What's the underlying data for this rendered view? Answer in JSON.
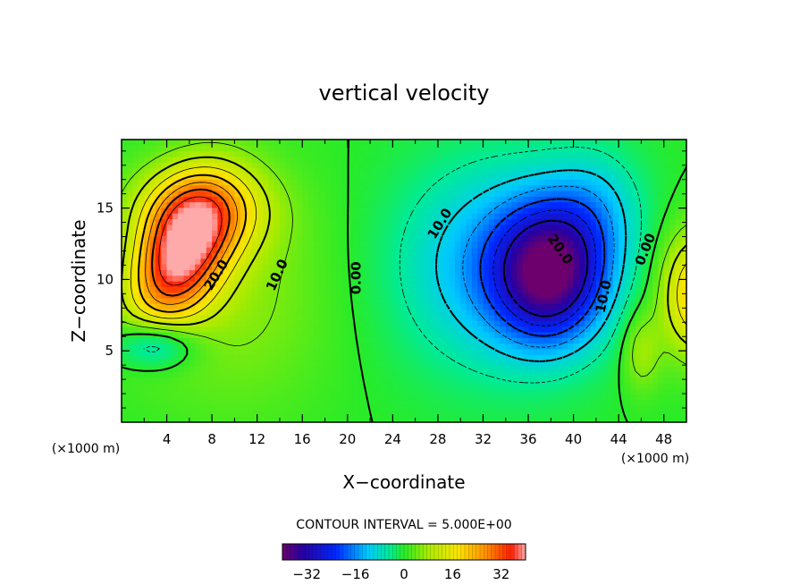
{
  "chart_data": {
    "type": "heatmap",
    "title": "vertical velocity",
    "xlabel": "X−coordinate",
    "ylabel": "Z−coordinate",
    "x_unit_left": "(×1000 m)",
    "x_unit_right": "(×1000 m)",
    "xlim": [
      0,
      50
    ],
    "ylim": [
      0,
      19.8
    ],
    "x_ticks": [
      4,
      8,
      12,
      16,
      20,
      24,
      28,
      32,
      36,
      40,
      44,
      48
    ],
    "y_ticks": [
      5,
      10,
      15
    ],
    "contour_interval_text": "CONTOUR INTERVAL = 5.000E+00",
    "contour_interval": 5,
    "colorbar": {
      "min": -40,
      "max": 40,
      "ticks": [
        -32,
        -16,
        0,
        16,
        32
      ]
    },
    "contour_labels": [
      {
        "text": "20.0",
        "x": 8.4,
        "y": 10.3,
        "angle": -58
      },
      {
        "text": "10.0",
        "x": 13.8,
        "y": 10.3,
        "angle": -65
      },
      {
        "text": "0.00",
        "x": 20.8,
        "y": 10.1,
        "angle": -90
      },
      {
        "text": "10.0",
        "x": 28.2,
        "y": 13.9,
        "angle": -58
      },
      {
        "text": "20.0",
        "x": 38.8,
        "y": 12.1,
        "angle": 55
      },
      {
        "text": "10.0",
        "x": 42.7,
        "y": 8.8,
        "angle": -78
      },
      {
        "text": "0.00",
        "x": 46.4,
        "y": 12.1,
        "angle": -68
      }
    ],
    "field_features": [
      {
        "name": "updraft",
        "x": 5,
        "y": 11.5,
        "value": 36
      },
      {
        "name": "downdraft",
        "x": 38,
        "y": 10.5,
        "value": -34
      },
      {
        "name": "edge-updraft",
        "x": 51,
        "y": 9,
        "value": 22
      }
    ]
  }
}
